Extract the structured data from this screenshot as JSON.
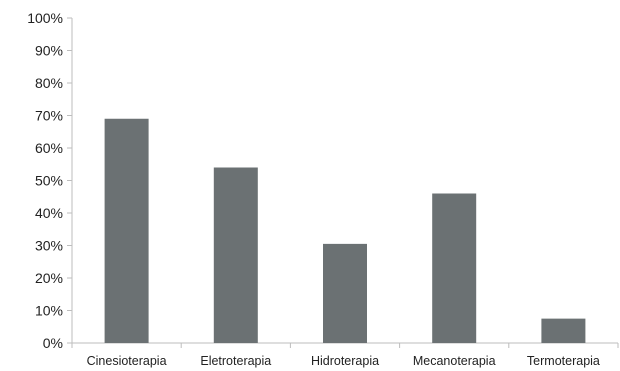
{
  "chart_data": {
    "type": "bar",
    "categories": [
      "Cinesioterapia",
      "Eletroterapia",
      "Hidroterapia",
      "Mecanoterapia",
      "Termoterapia"
    ],
    "values": [
      69,
      54,
      30.5,
      46,
      7.5
    ],
    "y_ticks": [
      "0%",
      "10%",
      "20%",
      "30%",
      "40%",
      "50%",
      "60%",
      "70%",
      "80%",
      "90%",
      "100%"
    ],
    "ylim": [
      0,
      100
    ],
    "y_unit": "%",
    "bar_color": "#6b7173",
    "axis_color": "#bdbdbd",
    "grid": false,
    "legend": false
  }
}
